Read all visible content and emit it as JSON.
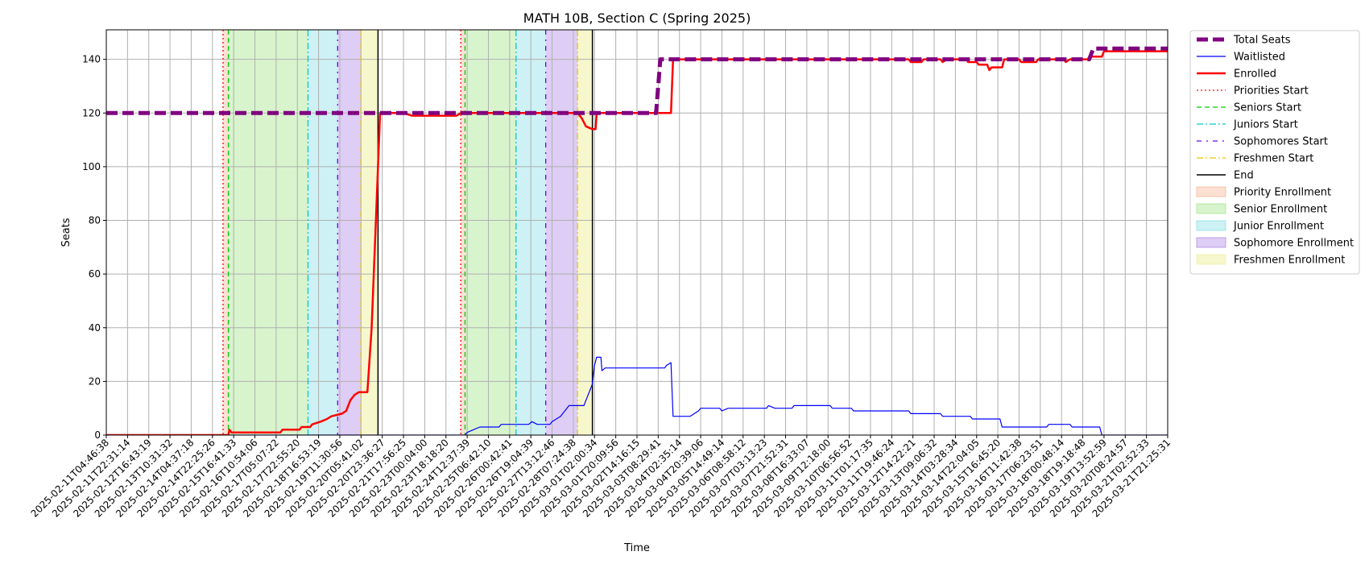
{
  "chart_data": {
    "type": "line",
    "title": "MATH 10B, Section C (Spring 2025)",
    "xlabel": "Time",
    "ylabel": "Seats",
    "ylim": [
      0,
      151
    ],
    "yticks": [
      0,
      20,
      40,
      60,
      80,
      100,
      120,
      140
    ],
    "grid": true,
    "legend_position": "outside-right-top",
    "x_tick_labels": [
      "2025-02-11T04:46:38",
      "2025-02-11T22:31:14",
      "2025-02-12T16:43:19",
      "2025-02-13T10:31:32",
      "2025-02-14T04:37:18",
      "2025-02-14T22:25:26",
      "2025-02-15T16:41:33",
      "2025-02-16T10:54:06",
      "2025-02-17T05:07:22",
      "2025-02-17T22:55:20",
      "2025-02-18T16:53:19",
      "2025-02-19T11:30:56",
      "2025-02-20T05:41:02",
      "2025-02-20T23:36:27",
      "2025-02-21T17:56:25",
      "2025-02-23T00:04:00",
      "2025-02-23T18:18:20",
      "2025-02-24T12:37:39",
      "2025-02-25T06:42:10",
      "2025-02-26T00:42:41",
      "2025-02-26T19:04:39",
      "2025-02-27T13:12:46",
      "2025-02-28T07:24:38",
      "2025-03-01T02:00:34",
      "2025-03-01T20:09:56",
      "2025-03-02T14:16:15",
      "2025-03-03T08:29:41",
      "2025-03-04T02:35:14",
      "2025-03-04T20:39:06",
      "2025-03-05T14:49:14",
      "2025-03-06T08:58:12",
      "2025-03-07T03:13:23",
      "2025-03-07T21:52:31",
      "2025-03-08T16:33:07",
      "2025-03-09T12:18:00",
      "2025-03-10T06:56:52",
      "2025-03-11T01:17:35",
      "2025-03-11T19:46:24",
      "2025-03-12T14:22:21",
      "2025-03-13T09:06:32",
      "2025-03-14T03:28:34",
      "2025-03-14T22:04:05",
      "2025-03-15T16:45:20",
      "2025-03-16T11:42:38",
      "2025-03-17T06:23:51",
      "2025-03-18T00:48:14",
      "2025-03-18T19:18:48",
      "2025-03-19T13:52:59",
      "2025-03-20T08:24:57",
      "2025-03-21T02:52:33",
      "2025-03-21T21:25:31"
    ],
    "x_index_range": [
      0,
      50
    ],
    "series": [
      {
        "name": "Total Seats",
        "color": "#800080",
        "style": "dashed-thick",
        "points": [
          [
            0,
            120
          ],
          [
            25.9,
            120
          ],
          [
            26.1,
            140
          ],
          [
            46.3,
            140
          ],
          [
            46.5,
            144
          ],
          [
            50,
            144
          ]
        ]
      },
      {
        "name": "Waitlisted",
        "color": "#0000ff",
        "style": "solid-thin",
        "points": [
          [
            0,
            0
          ],
          [
            16.9,
            0
          ],
          [
            17,
            1
          ],
          [
            17.3,
            2
          ],
          [
            17.6,
            3
          ],
          [
            18.5,
            3
          ],
          [
            18.6,
            4
          ],
          [
            19.9,
            4
          ],
          [
            20.05,
            5
          ],
          [
            20.3,
            4
          ],
          [
            20.9,
            4
          ],
          [
            21,
            5
          ],
          [
            21.2,
            6
          ],
          [
            21.4,
            7
          ],
          [
            21.6,
            9
          ],
          [
            21.8,
            11
          ],
          [
            22.5,
            11
          ],
          [
            22.6,
            13
          ],
          [
            22.8,
            17
          ],
          [
            22.9,
            19
          ],
          [
            23,
            26
          ],
          [
            23.1,
            29
          ],
          [
            23.3,
            29
          ],
          [
            23.35,
            24
          ],
          [
            23.5,
            25
          ],
          [
            26.3,
            25
          ],
          [
            26.4,
            26
          ],
          [
            26.6,
            27
          ],
          [
            26.7,
            7
          ],
          [
            27.5,
            7
          ],
          [
            27.9,
            9
          ],
          [
            28,
            10
          ],
          [
            28.9,
            10
          ],
          [
            29,
            9
          ],
          [
            29.3,
            10
          ],
          [
            31.1,
            10
          ],
          [
            31.2,
            11
          ],
          [
            31.5,
            10
          ],
          [
            32.3,
            10
          ],
          [
            32.4,
            11
          ],
          [
            34.1,
            11
          ],
          [
            34.2,
            10
          ],
          [
            35.1,
            10
          ],
          [
            35.2,
            9
          ],
          [
            37.8,
            9
          ],
          [
            37.9,
            8
          ],
          [
            39.3,
            8
          ],
          [
            39.4,
            7
          ],
          [
            40.7,
            7
          ],
          [
            40.8,
            6
          ],
          [
            42.1,
            6
          ],
          [
            42.2,
            3
          ],
          [
            44.3,
            3
          ],
          [
            44.4,
            4
          ],
          [
            45.4,
            4
          ],
          [
            45.5,
            3
          ],
          [
            46.8,
            3
          ],
          [
            46.9,
            0
          ],
          [
            50,
            0
          ]
        ]
      },
      {
        "name": "Enrolled",
        "color": "#ff0000",
        "style": "solid-thick",
        "points": [
          [
            0,
            0
          ],
          [
            5.75,
            0
          ],
          [
            5.8,
            2
          ],
          [
            5.9,
            1
          ],
          [
            8.2,
            1
          ],
          [
            8.3,
            2
          ],
          [
            9.1,
            2
          ],
          [
            9.2,
            3
          ],
          [
            9.6,
            3
          ],
          [
            9.7,
            4
          ],
          [
            10.1,
            5
          ],
          [
            10.4,
            6
          ],
          [
            10.6,
            7
          ],
          [
            11.1,
            8
          ],
          [
            11.3,
            9
          ],
          [
            11.5,
            13
          ],
          [
            11.7,
            15
          ],
          [
            11.9,
            16
          ],
          [
            12.3,
            16
          ],
          [
            12.5,
            40
          ],
          [
            12.7,
            80
          ],
          [
            12.8,
            100
          ],
          [
            12.9,
            120
          ],
          [
            14,
            120
          ],
          [
            14.4,
            119
          ],
          [
            16.5,
            119
          ],
          [
            16.7,
            120
          ],
          [
            22.2,
            120
          ],
          [
            22.4,
            118
          ],
          [
            22.6,
            115
          ],
          [
            22.9,
            114
          ],
          [
            23.05,
            114
          ],
          [
            23.1,
            120
          ],
          [
            26.6,
            120
          ],
          [
            26.7,
            140
          ],
          [
            37.8,
            140
          ],
          [
            37.9,
            139
          ],
          [
            38.4,
            139
          ],
          [
            38.5,
            140
          ],
          [
            39.3,
            140
          ],
          [
            39.4,
            139
          ],
          [
            39.6,
            140
          ],
          [
            40.5,
            140
          ],
          [
            40.6,
            139
          ],
          [
            41,
            139
          ],
          [
            41.1,
            138
          ],
          [
            41.5,
            138
          ],
          [
            41.6,
            136
          ],
          [
            41.7,
            137
          ],
          [
            42.2,
            137
          ],
          [
            42.3,
            140
          ],
          [
            43,
            140
          ],
          [
            43.1,
            139
          ],
          [
            43.8,
            139
          ],
          [
            43.9,
            140
          ],
          [
            45.1,
            140
          ],
          [
            45.2,
            139
          ],
          [
            45.4,
            140
          ],
          [
            46.3,
            140
          ],
          [
            46.4,
            141
          ],
          [
            46.9,
            141
          ],
          [
            47,
            143
          ],
          [
            50,
            143
          ]
        ]
      }
    ],
    "vertical_markers": [
      {
        "name": "Priorities Start",
        "color": "#ff0000",
        "style": "dotted",
        "x": [
          5.5,
          16.7
        ]
      },
      {
        "name": "Seniors Start",
        "color": "#00cc00",
        "style": "dashed",
        "x": [
          5.75,
          16.9
        ]
      },
      {
        "name": "Juniors Start",
        "color": "#00cccc",
        "style": "dashdot",
        "x": [
          9.5,
          19.3
        ]
      },
      {
        "name": "Sophomores Start",
        "color": "#6600ff",
        "style": "dashdot-sparse",
        "x": [
          10.9,
          20.7
        ]
      },
      {
        "name": "Freshmen Start",
        "color": "#e6c800",
        "style": "dashdot",
        "x": [
          12,
          22.2
        ]
      },
      {
        "name": "End",
        "color": "#000000",
        "style": "solid",
        "x": [
          12.8,
          22.9
        ]
      }
    ],
    "shaded_regions": [
      {
        "name": "Priority Enrollment",
        "color": "#f4a582",
        "alpha": 0.35,
        "spans": [
          [
            5.5,
            5.75
          ],
          [
            16.7,
            16.9
          ]
        ]
      },
      {
        "name": "Senior Enrollment",
        "color": "#90e070",
        "alpha": 0.35,
        "spans": [
          [
            5.75,
            9.5
          ],
          [
            16.9,
            19.3
          ]
        ]
      },
      {
        "name": "Junior Enrollment",
        "color": "#70d8e0",
        "alpha": 0.35,
        "spans": [
          [
            9.5,
            10.9
          ],
          [
            19.3,
            20.7
          ]
        ]
      },
      {
        "name": "Sophomore Enrollment",
        "color": "#a070e0",
        "alpha": 0.35,
        "spans": [
          [
            10.9,
            12
          ],
          [
            20.7,
            22.2
          ]
        ]
      },
      {
        "name": "Freshmen Enrollment",
        "color": "#eeee90",
        "alpha": 0.45,
        "spans": [
          [
            12,
            12.8
          ],
          [
            22.2,
            22.9
          ]
        ]
      }
    ],
    "legend": [
      {
        "label": "Total Seats",
        "kind": "line",
        "color": "#800080",
        "style": "dashed-thick"
      },
      {
        "label": "Waitlisted",
        "kind": "line",
        "color": "#0000ff",
        "style": "solid-thin"
      },
      {
        "label": "Enrolled",
        "kind": "line",
        "color": "#ff0000",
        "style": "solid-thick"
      },
      {
        "label": "Priorities Start",
        "kind": "line",
        "color": "#ff0000",
        "style": "dotted"
      },
      {
        "label": "Seniors Start",
        "kind": "line",
        "color": "#00cc00",
        "style": "dashed"
      },
      {
        "label": "Juniors Start",
        "kind": "line",
        "color": "#00cccc",
        "style": "dashdot"
      },
      {
        "label": "Sophomores Start",
        "kind": "line",
        "color": "#6600ff",
        "style": "dashdot-sparse"
      },
      {
        "label": "Freshmen Start",
        "kind": "line",
        "color": "#e6c800",
        "style": "dashdot"
      },
      {
        "label": "End",
        "kind": "line",
        "color": "#000000",
        "style": "solid"
      },
      {
        "label": "Priority Enrollment",
        "kind": "patch",
        "color": "#f4a582",
        "alpha": 0.35
      },
      {
        "label": "Senior Enrollment",
        "kind": "patch",
        "color": "#90e070",
        "alpha": 0.35
      },
      {
        "label": "Junior Enrollment",
        "kind": "patch",
        "color": "#70d8e0",
        "alpha": 0.35
      },
      {
        "label": "Sophomore Enrollment",
        "kind": "patch",
        "color": "#a070e0",
        "alpha": 0.35
      },
      {
        "label": "Freshmen Enrollment",
        "kind": "patch",
        "color": "#eeee90",
        "alpha": 0.45
      }
    ]
  }
}
